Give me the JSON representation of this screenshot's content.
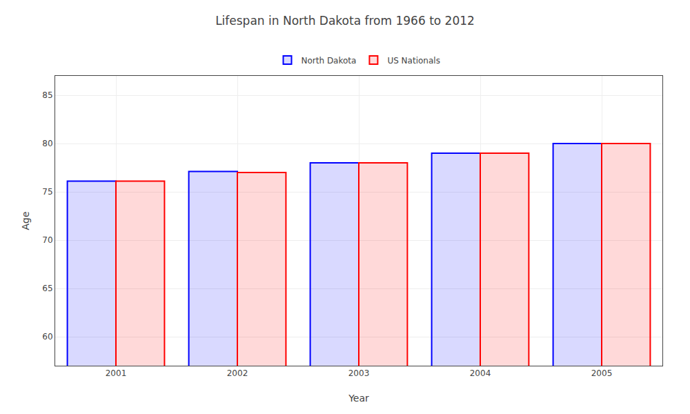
{
  "chart_data": {
    "type": "bar",
    "title": "Lifespan in North Dakota from 1966 to 2012",
    "xlabel": "Year",
    "ylabel": "Age",
    "categories": [
      "2001",
      "2002",
      "2003",
      "2004",
      "2005"
    ],
    "series": [
      {
        "name": "North Dakota",
        "color": "#0000ff",
        "values": [
          76.1,
          77.1,
          78.0,
          79.0,
          80.0
        ]
      },
      {
        "name": "US Nationals",
        "color": "#ff0000",
        "values": [
          76.1,
          77.0,
          78.0,
          79.0,
          80.0
        ]
      }
    ],
    "ylim": [
      57,
      87
    ],
    "yticks": [
      60,
      65,
      70,
      75,
      80,
      85
    ],
    "grid": true,
    "legend": "top"
  }
}
